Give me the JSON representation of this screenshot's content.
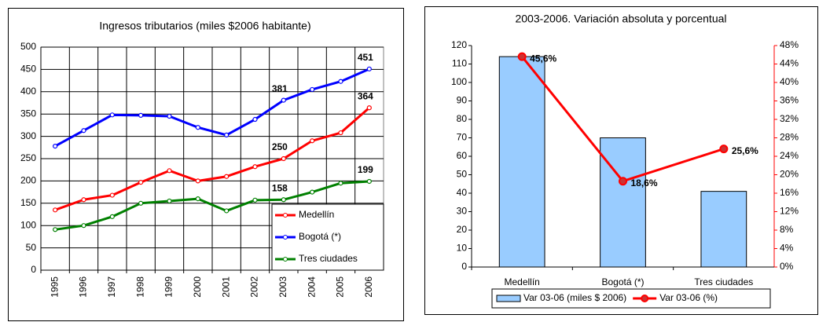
{
  "chart_data": [
    {
      "type": "line",
      "title": "Ingresos tributarios (miles $2006 habitante)",
      "categories": [
        "1995",
        "1996",
        "1997",
        "1998",
        "1999",
        "2000",
        "2001",
        "2002",
        "2003",
        "2004",
        "2005",
        "2006"
      ],
      "series": [
        {
          "name": "Medellín",
          "color": "#ff0000",
          "values": [
            135,
            158,
            168,
            197,
            223,
            200,
            210,
            232,
            250,
            290,
            308,
            364
          ],
          "value_labels": [
            null,
            null,
            null,
            null,
            null,
            null,
            null,
            null,
            "250",
            null,
            null,
            "364"
          ]
        },
        {
          "name": "Bogotá (*)",
          "color": "#0000ff",
          "values": [
            278,
            313,
            348,
            347,
            345,
            320,
            303,
            338,
            381,
            405,
            423,
            451
          ],
          "value_labels": [
            null,
            null,
            null,
            null,
            null,
            null,
            null,
            null,
            "381",
            null,
            null,
            "451"
          ]
        },
        {
          "name": "Tres ciudades",
          "color": "#008000",
          "values": [
            91,
            100,
            120,
            150,
            155,
            160,
            133,
            157,
            158,
            175,
            195,
            199
          ],
          "value_labels": [
            null,
            null,
            null,
            null,
            null,
            null,
            null,
            null,
            "158",
            null,
            null,
            "199"
          ]
        }
      ],
      "ylim": [
        0,
        500
      ],
      "yticks": [
        0,
        50,
        100,
        150,
        200,
        250,
        300,
        350,
        400,
        450,
        500
      ],
      "grid": true,
      "legend": "lower right"
    },
    {
      "type": "combo",
      "title": "2003-2006. Variación absoluta y porcentual",
      "categories": [
        "Medellín",
        "Bogotá (*)",
        "Tres ciudades"
      ],
      "series": [
        {
          "name": "Var 03-06 (miles $ 2006)",
          "type": "bar",
          "color": "#99ccff",
          "values": [
            114,
            70,
            41
          ]
        },
        {
          "name": "Var 03-06 (%)",
          "type": "line",
          "axis": "y2",
          "color": "#ff0000",
          "values": [
            45.6,
            18.6,
            25.6
          ],
          "value_labels": [
            "45,6%",
            "18,6%",
            "25,6%"
          ]
        }
      ],
      "ylim": [
        0,
        120
      ],
      "yticks": [
        0,
        10,
        20,
        30,
        40,
        50,
        60,
        70,
        80,
        90,
        100,
        110,
        120
      ],
      "y2lim": [
        0,
        48
      ],
      "y2ticks": [
        {
          "value": 0,
          "label": "0%"
        },
        {
          "value": 4,
          "label": "4%"
        },
        {
          "value": 8,
          "label": "8%"
        },
        {
          "value": 12,
          "label": "12%"
        },
        {
          "value": 16,
          "label": "16%"
        },
        {
          "value": 20,
          "label": "20%"
        },
        {
          "value": 24,
          "label": "24%"
        },
        {
          "value": 28,
          "label": "28%"
        },
        {
          "value": 32,
          "label": "32%"
        },
        {
          "value": 36,
          "label": "36%"
        },
        {
          "value": 40,
          "label": "40%"
        },
        {
          "value": 44,
          "label": "44%"
        },
        {
          "value": 48,
          "label": "48%"
        }
      ],
      "y2color": "#ff0000",
      "grid": false,
      "legend": "bottom"
    }
  ]
}
